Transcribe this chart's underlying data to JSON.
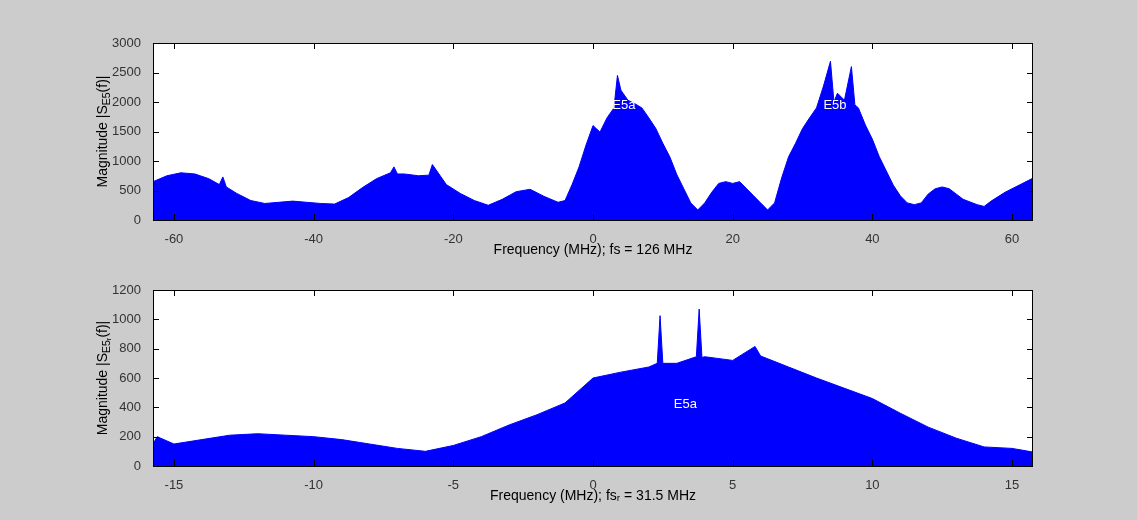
{
  "chart_data": [
    {
      "type": "area",
      "xlabel": "Frequency (MHz); fs = 126 MHz",
      "ylabel": "Magnitude |S$_{E5}$(f)|",
      "xlim": [
        -63,
        63
      ],
      "xticks": [
        -60,
        -40,
        -20,
        0,
        20,
        40,
        60
      ],
      "ylim": [
        0,
        3000
      ],
      "yticks": [
        0,
        500,
        1000,
        1500,
        2000,
        2500,
        3000
      ],
      "annotations": [
        "E5a",
        "E5b"
      ],
      "x": [
        -63,
        -61,
        -59,
        -57,
        -55,
        -53.5,
        -53,
        -52.5,
        -51,
        -49,
        -47,
        -45,
        -43,
        -41,
        -39,
        -37,
        -35,
        -33,
        -31,
        -29,
        -28.5,
        -28,
        -27,
        -25,
        -23.5,
        -23,
        -21,
        -19,
        -17,
        -15,
        -13,
        -11,
        -9,
        -7,
        -5,
        -4,
        -3,
        -2,
        -1,
        0,
        1,
        2,
        3,
        3.5,
        4,
        5,
        6,
        7,
        8,
        9,
        10,
        11,
        12,
        13,
        14,
        15,
        16,
        17,
        18,
        19,
        20,
        21,
        22,
        23,
        24,
        25,
        26,
        27,
        28,
        29,
        30,
        31,
        32,
        33,
        34,
        34.5,
        35,
        36,
        37,
        37.5,
        38,
        39,
        40,
        41,
        42,
        43,
        44,
        45,
        46,
        47,
        48,
        49,
        50,
        51,
        52,
        53,
        55,
        56,
        57,
        59,
        61,
        63
      ],
      "series": [
        {
          "color": "#0000ff",
          "values": [
            650,
            750,
            800,
            780,
            700,
            600,
            730,
            560,
            450,
            330,
            280,
            300,
            320,
            300,
            280,
            270,
            380,
            550,
            700,
            800,
            900,
            780,
            780,
            750,
            760,
            940,
            600,
            450,
            330,
            250,
            350,
            480,
            520,
            400,
            300,
            330,
            600,
            900,
            1270,
            1600,
            1490,
            1730,
            1900,
            2450,
            2200,
            2030,
            1970,
            1900,
            1730,
            1550,
            1300,
            1070,
            770,
            530,
            290,
            170,
            290,
            470,
            620,
            650,
            620,
            650,
            530,
            410,
            290,
            170,
            290,
            710,
            1070,
            1300,
            1550,
            1730,
            1900,
            2270,
            2690,
            2000,
            2150,
            2030,
            2600,
            1950,
            1900,
            1610,
            1370,
            1070,
            830,
            590,
            410,
            290,
            260,
            290,
            440,
            530,
            560,
            530,
            440,
            350,
            260,
            230,
            320,
            470,
            590,
            710
          ]
        }
      ]
    },
    {
      "type": "area",
      "xlabel": "Frequency (MHz); fsᵣ = 31.5 MHz",
      "ylabel": "Magnitude |S$_{E5ᵣ}$(f)|",
      "xlim": [
        -15.75,
        15.75
      ],
      "xticks": [
        -15,
        -10,
        -5,
        0,
        5,
        10,
        15
      ],
      "ylim": [
        0,
        1200
      ],
      "yticks": [
        0,
        200,
        400,
        600,
        800,
        1000,
        1200
      ],
      "annotations": [
        "E5a"
      ],
      "x": [
        -15.75,
        -15.6,
        -15,
        -14,
        -13,
        -12,
        -11,
        -10,
        -9,
        -8,
        -7,
        -6,
        -5,
        -4,
        -3,
        -2,
        -1,
        0,
        1,
        2,
        2.3,
        2.4,
        2.5,
        3,
        3.7,
        3.8,
        3.9,
        4,
        5,
        5.8,
        6,
        7,
        8,
        9,
        10,
        11,
        12,
        13,
        14,
        15,
        15.75
      ],
      "series": [
        {
          "color": "#0000ff",
          "values": [
            150,
            200,
            150,
            180,
            210,
            220,
            210,
            200,
            180,
            150,
            120,
            100,
            140,
            200,
            280,
            350,
            430,
            600,
            640,
            675,
            700,
            1025,
            700,
            700,
            745,
            1070,
            740,
            745,
            720,
            815,
            750,
            675,
            600,
            530,
            460,
            360,
            265,
            190,
            130,
            120,
            95
          ]
        }
      ]
    }
  ]
}
